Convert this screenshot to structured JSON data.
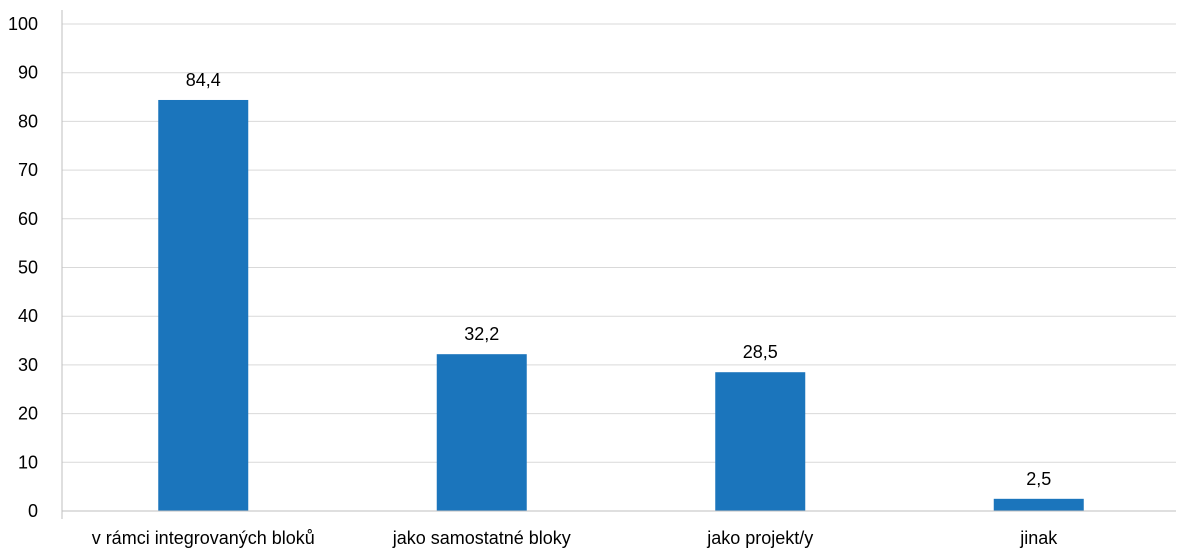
{
  "chart_data": {
    "type": "bar",
    "categories": [
      "v rámci integrovaných bloků",
      "jako samostatné bloky",
      "jako projekt/y",
      "jinak"
    ],
    "values": [
      84.4,
      32.2,
      28.5,
      2.5
    ],
    "value_labels": [
      "84,4",
      "32,2",
      "28,5",
      "2,5"
    ],
    "y_ticks": [
      "0",
      "10",
      "20",
      "30",
      "40",
      "50",
      "60",
      "70",
      "80",
      "90",
      "100"
    ],
    "ylim": [
      0,
      100
    ],
    "grid": true,
    "bar_color": "#1b75bc",
    "grid_color": "#d9d9d9"
  }
}
